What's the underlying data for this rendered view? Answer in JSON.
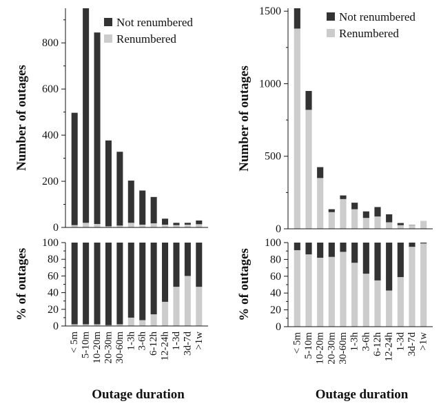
{
  "colors": {
    "not_renumbered": "#333333",
    "renumbered": "#cccccc",
    "axis": "#111111"
  },
  "chart_data": [
    {
      "type": "bar",
      "stacked": true,
      "panel": "left-top",
      "categories": [
        "< 5m",
        "5-10m",
        "10-20m",
        "20-30m",
        "30-60m",
        "1-3h",
        "3-6h",
        "6-12h",
        "12-24h",
        "1-3d",
        "3d-7d",
        ">1w"
      ],
      "series": [
        {
          "name": "Renumbered",
          "values": [
            10,
            20,
            15,
            5,
            8,
            20,
            12,
            18,
            12,
            10,
            12,
            14
          ]
        },
        {
          "name": "Not renumbered",
          "values": [
            487,
            935,
            830,
            372,
            320,
            183,
            148,
            114,
            26,
            10,
            8,
            16
          ]
        }
      ],
      "xlabel": "",
      "ylabel": "Number of outages",
      "ylim": [
        0,
        950
      ],
      "yticks": [
        0,
        200,
        400,
        600,
        800
      ],
      "legend": "top-right"
    },
    {
      "type": "bar",
      "stacked": true,
      "panel": "left-bottom",
      "categories": [
        "< 5m",
        "5-10m",
        "10-20m",
        "20-30m",
        "30-60m",
        "1-3h",
        "3-6h",
        "6-12h",
        "12-24h",
        "1-3d",
        "3d-7d",
        ">1w"
      ],
      "series": [
        {
          "name": "Renumbered",
          "values": [
            2,
            2,
            2,
            1,
            2,
            10,
            7,
            14,
            29,
            47,
            60,
            47
          ]
        },
        {
          "name": "Not renumbered",
          "values": [
            98,
            98,
            98,
            99,
            98,
            90,
            93,
            86,
            71,
            53,
            40,
            53
          ]
        }
      ],
      "xlabel": "Outage duration",
      "ylabel": "% of outages",
      "ylim": [
        0,
        100
      ],
      "yticks": [
        0,
        20,
        40,
        60,
        80,
        100
      ]
    },
    {
      "type": "bar",
      "stacked": true,
      "panel": "right-top",
      "categories": [
        "< 5m",
        "5-10m",
        "10-20m",
        "20-30m",
        "30-60m",
        "1-3h",
        "3-6h",
        "6-12h",
        "12-24h",
        "1-3d",
        "3d-7d",
        ">1w"
      ],
      "series": [
        {
          "name": "Renumbered",
          "values": [
            1380,
            820,
            350,
            115,
            205,
            135,
            75,
            85,
            45,
            25,
            25,
            55
          ]
        },
        {
          "name": "Not renumbered",
          "values": [
            140,
            130,
            75,
            20,
            25,
            45,
            45,
            65,
            55,
            15,
            2,
            0
          ]
        }
      ],
      "xlabel": "",
      "ylabel": "Number of outages",
      "ylim": [
        0,
        1520
      ],
      "yticks": [
        0,
        500,
        1000,
        1500
      ],
      "legend": "top-right"
    },
    {
      "type": "bar",
      "stacked": true,
      "panel": "right-bottom",
      "categories": [
        "< 5m",
        "5-10m",
        "10-20m",
        "20-30m",
        "30-60m",
        "1-3h",
        "3-6h",
        "6-12h",
        "12-24h",
        "1-3d",
        "3d-7d",
        ">1w"
      ],
      "series": [
        {
          "name": "Renumbered",
          "values": [
            91,
            86,
            82,
            83,
            89,
            76,
            63,
            55,
            43,
            59,
            95,
            99
          ]
        },
        {
          "name": "Not renumbered",
          "values": [
            9,
            14,
            18,
            17,
            11,
            24,
            37,
            45,
            57,
            41,
            5,
            1
          ]
        }
      ],
      "xlabel": "Outage duration",
      "ylabel": "% of outages",
      "ylim": [
        0,
        100
      ],
      "yticks": [
        0,
        20,
        40,
        60,
        80,
        100
      ]
    }
  ]
}
